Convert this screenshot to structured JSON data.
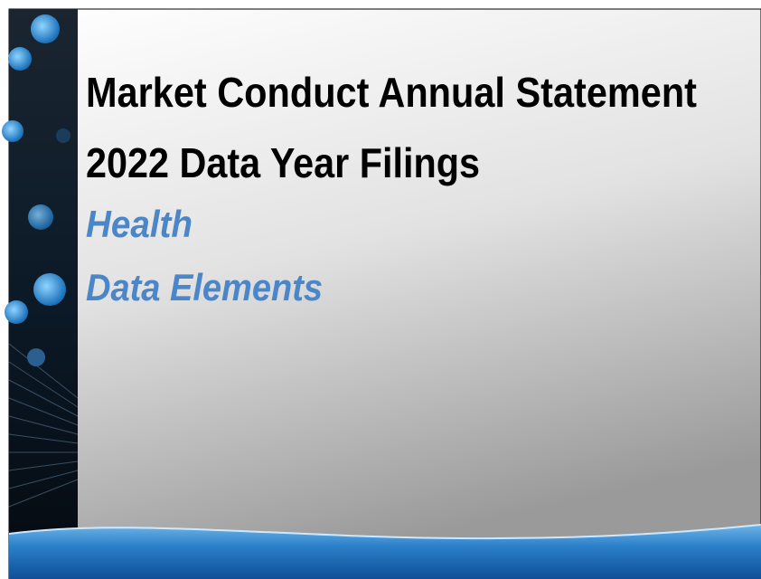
{
  "title": {
    "line1": "Market Conduct Annual Statement",
    "line2": "2022 Data Year Filings"
  },
  "subtitle": {
    "line1": "Health",
    "line2": "Data Elements"
  }
}
